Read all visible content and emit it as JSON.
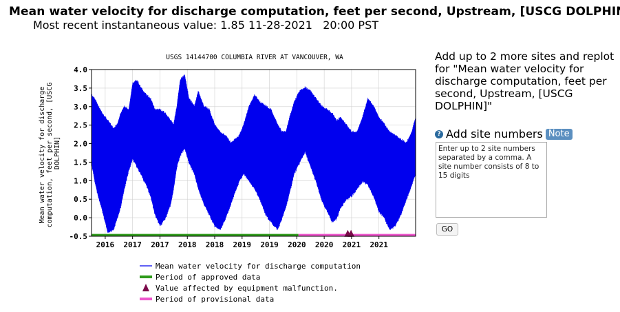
{
  "header": {
    "title": "Mean water velocity for discharge computation, feet per second, Upstream, [USCG DOLPHIN]",
    "recent_label": "Most recent instantaneous value:",
    "recent_value": "1.85",
    "recent_date": "11-28-2021",
    "recent_time": "20:00 PST"
  },
  "sidebar": {
    "replot_text": "Add up to 2 more sites and replot for \"Mean water velocity for discharge computation, feet per second, Upstream, [USCG DOLPHIN]\"",
    "help_icon": "?",
    "add_label": "Add site numbers",
    "note_label": "Note",
    "input_placeholder": "Enter up to 2 site numbers separated by a comma. A site number consists of 8 to 15 digits",
    "input_value": "",
    "go_label": "GO"
  },
  "colors": {
    "series": "#0000ee",
    "approved": "#2e9a1a",
    "malfunction": "#7b0a4a",
    "provisional": "#ee55cc"
  },
  "chart_data": {
    "type": "line",
    "title": "USGS 14144700 COLUMBIA RIVER AT VANCOUVER, WA",
    "ylabel": "Mean water velocity for discharge computation, feet per second, [USCG DOLPHIN]",
    "ylabel_lines": [
      "Mean water velocity for discharge",
      "computation, feet per second, [USCG",
      "DOLPHIN]"
    ],
    "xlabel": "",
    "ylim": [
      -0.5,
      4.0
    ],
    "yticks": [
      -0.5,
      0.0,
      0.5,
      1.0,
      1.5,
      2.0,
      2.5,
      3.0,
      3.5,
      4.0
    ],
    "ytick_labels": [
      "-0.5",
      "0.0",
      "0.5",
      "1.0",
      "1.5",
      "2.0",
      "2.5",
      "3.0",
      "3.5",
      "4.0"
    ],
    "xlim": [
      2016.0,
      2021.92
    ],
    "xtick_labels": [
      {
        "x": 2016.25,
        "label": "2016"
      },
      {
        "x": 2016.75,
        "label": "2017"
      },
      {
        "x": 2017.25,
        "label": "2017"
      },
      {
        "x": 2017.75,
        "label": "2018"
      },
      {
        "x": 2018.25,
        "label": "2018"
      },
      {
        "x": 2018.75,
        "label": "2019"
      },
      {
        "x": 2019.25,
        "label": "2019"
      },
      {
        "x": 2019.75,
        "label": "2020"
      },
      {
        "x": 2020.25,
        "label": "2020"
      },
      {
        "x": 2020.75,
        "label": "2021"
      },
      {
        "x": 2021.25,
        "label": "2021"
      }
    ],
    "grid": true,
    "series": [
      {
        "name": "Mean water velocity for discharge computation",
        "style": "band",
        "x": [
          2016.0,
          2016.06,
          2016.12,
          2016.2,
          2016.3,
          2016.4,
          2016.47,
          2016.53,
          2016.6,
          2016.68,
          2016.75,
          2016.83,
          2016.9,
          2017.0,
          2017.08,
          2017.16,
          2017.25,
          2017.35,
          2017.45,
          2017.5,
          2017.56,
          2017.62,
          2017.7,
          2017.78,
          2017.88,
          2017.95,
          2018.05,
          2018.15,
          2018.25,
          2018.35,
          2018.45,
          2018.55,
          2018.62,
          2018.7,
          2018.78,
          2018.88,
          2018.98,
          2019.08,
          2019.18,
          2019.28,
          2019.4,
          2019.48,
          2019.55,
          2019.62,
          2019.7,
          2019.8,
          2019.9,
          2020.0,
          2020.1,
          2020.2,
          2020.3,
          2020.4,
          2020.48,
          2020.55,
          2020.65,
          2020.75,
          2020.85,
          2020.95,
          2021.05,
          2021.15,
          2021.25,
          2021.35,
          2021.45,
          2021.55,
          2021.65,
          2021.75,
          2021.85,
          2021.92
        ],
        "high": [
          3.3,
          3.2,
          3.0,
          2.8,
          2.6,
          2.4,
          2.5,
          2.8,
          3.0,
          2.9,
          3.6,
          3.7,
          3.5,
          3.3,
          3.2,
          2.9,
          2.9,
          2.8,
          2.6,
          2.5,
          3.0,
          3.7,
          3.85,
          3.2,
          3.0,
          3.4,
          3.0,
          2.9,
          2.5,
          2.3,
          2.2,
          2.0,
          2.1,
          2.2,
          2.5,
          3.0,
          3.3,
          3.1,
          3.0,
          2.9,
          2.5,
          2.3,
          2.3,
          2.7,
          3.1,
          3.4,
          3.5,
          3.4,
          3.2,
          3.0,
          2.9,
          2.8,
          2.6,
          2.7,
          2.5,
          2.3,
          2.3,
          2.7,
          3.2,
          3.0,
          2.7,
          2.5,
          2.3,
          2.2,
          2.1,
          2.0,
          2.3,
          2.7
        ],
        "low": [
          1.5,
          1.0,
          0.6,
          0.2,
          -0.4,
          -0.3,
          0.0,
          0.3,
          0.8,
          1.3,
          1.6,
          1.4,
          1.2,
          0.9,
          0.6,
          0.1,
          -0.2,
          0.0,
          0.4,
          0.8,
          1.4,
          1.7,
          1.9,
          1.5,
          1.2,
          0.8,
          0.4,
          0.1,
          -0.2,
          -0.3,
          0.0,
          0.4,
          0.7,
          1.0,
          1.2,
          1.0,
          0.8,
          0.5,
          0.1,
          -0.1,
          -0.3,
          0.0,
          0.3,
          0.7,
          1.2,
          1.5,
          1.8,
          1.4,
          1.0,
          0.5,
          0.2,
          -0.1,
          0.0,
          0.3,
          0.5,
          0.6,
          0.8,
          1.0,
          0.9,
          0.6,
          0.2,
          0.0,
          -0.3,
          -0.2,
          0.1,
          0.5,
          0.9,
          1.2
        ]
      }
    ],
    "approved_period": {
      "start": 2016.0,
      "end": 2019.78,
      "y": -0.47
    },
    "provisional_period": {
      "start": 2019.78,
      "end": 2021.92,
      "y": -0.47
    },
    "malfunction_points": [
      {
        "x": 2020.68,
        "y": -0.42
      },
      {
        "x": 2020.74,
        "y": -0.42
      }
    ],
    "legend": {
      "placement": "bottom",
      "entries": [
        {
          "label": "Mean water velocity for discharge computation",
          "symbol": "line"
        },
        {
          "label": "Period of approved data",
          "symbol": "approved"
        },
        {
          "label": "Value affected by equipment malfunction.",
          "symbol": "triangle"
        },
        {
          "label": "Period of provisional data",
          "symbol": "provisional"
        }
      ]
    }
  }
}
